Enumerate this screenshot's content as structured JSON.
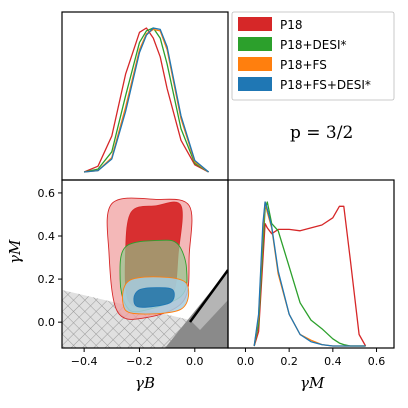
{
  "chart_data": [
    {
      "type": "line",
      "panel": "gamma_B marginal posterior",
      "xlim": [
        -0.48,
        0.12
      ],
      "x": [
        -0.4,
        -0.35,
        -0.3,
        -0.25,
        -0.2,
        -0.175,
        -0.15,
        -0.125,
        -0.1,
        -0.05,
        0.0,
        0.05
      ],
      "series": [
        {
          "name": "P18",
          "color": "#d62728",
          "values": [
            0.0,
            0.04,
            0.25,
            0.68,
            0.97,
            1.0,
            0.93,
            0.8,
            0.58,
            0.22,
            0.05,
            0.0
          ]
        },
        {
          "name": "P18+DESI*",
          "color": "#2ca02c",
          "values": [
            0.0,
            0.02,
            0.14,
            0.53,
            0.9,
            0.98,
            1.0,
            0.93,
            0.75,
            0.3,
            0.06,
            0.0
          ]
        },
        {
          "name": "P18+FS",
          "color": "#ff7f0e",
          "values": [
            0.0,
            0.01,
            0.1,
            0.45,
            0.85,
            0.96,
            0.99,
            0.98,
            0.85,
            0.37,
            0.07,
            0.0
          ]
        },
        {
          "name": "P18+FS+DESI*",
          "color": "#1f77b4",
          "values": [
            0.0,
            0.01,
            0.09,
            0.42,
            0.83,
            0.95,
            1.0,
            0.99,
            0.87,
            0.39,
            0.08,
            0.0
          ]
        }
      ],
      "ticks": []
    },
    {
      "type": "line",
      "panel": "gamma_M marginal posterior",
      "xlabel": "γM",
      "xlim": [
        -0.08,
        0.68
      ],
      "x_ticks": [
        "0.0",
        "0.2",
        "0.4",
        "0.6"
      ],
      "x": [
        0.04,
        0.06,
        0.08,
        0.09,
        0.1,
        0.12,
        0.15,
        0.2,
        0.25,
        0.3,
        0.35,
        0.4,
        0.43,
        0.45,
        0.48,
        0.52,
        0.55
      ],
      "series": [
        {
          "name": "P18",
          "color": "#d62728",
          "values": [
            0.0,
            0.1,
            0.6,
            0.85,
            0.82,
            0.78,
            0.81,
            0.81,
            0.8,
            0.82,
            0.84,
            0.89,
            0.97,
            0.97,
            0.6,
            0.08,
            0.0
          ]
        },
        {
          "name": "P18+DESI*",
          "color": "#2ca02c",
          "values": [
            0.0,
            0.15,
            0.7,
            0.95,
            1.0,
            0.85,
            0.8,
            0.55,
            0.3,
            0.18,
            0.12,
            0.05,
            0.02,
            0.01,
            0.0,
            0.0,
            0.0
          ]
        },
        {
          "name": "P18+FS",
          "color": "#ff7f0e",
          "values": [
            0.0,
            0.2,
            0.8,
            1.0,
            0.93,
            0.82,
            0.5,
            0.22,
            0.08,
            0.04,
            0.01,
            0.0,
            0.0,
            0.0,
            0.0,
            0.0,
            0.0
          ]
        },
        {
          "name": "P18+FS+DESI*",
          "color": "#1f77b4",
          "values": [
            0.0,
            0.22,
            0.85,
            1.0,
            0.95,
            0.83,
            0.52,
            0.22,
            0.08,
            0.03,
            0.01,
            0.0,
            0.0,
            0.0,
            0.0,
            0.0,
            0.0
          ]
        }
      ]
    },
    {
      "type": "contour",
      "panel": "gamma_B vs gamma_M 2D posterior",
      "xlabel": "γB",
      "ylabel": "γM",
      "xlim": [
        -0.48,
        0.12
      ],
      "ylim": [
        -0.12,
        0.66
      ],
      "x_ticks": [
        "-0.4",
        "-0.2",
        "0.0"
      ],
      "y_ticks": [
        "0.0",
        "0.2",
        "0.4",
        "0.6"
      ],
      "contours": [
        {
          "name": "P18 68%",
          "color": "#d62728",
          "points": [
            [
              -0.16,
              0.07
            ],
            [
              -0.08,
              0.13
            ],
            [
              -0.06,
              0.32
            ],
            [
              -0.05,
              0.54
            ],
            [
              -0.14,
              0.54
            ],
            [
              -0.23,
              0.51
            ],
            [
              -0.25,
              0.32
            ],
            [
              -0.24,
              0.1
            ]
          ]
        },
        {
          "name": "P18 95%",
          "color": "#f4a6a6",
          "points": [
            [
              -0.18,
              0.02
            ],
            [
              -0.04,
              0.1
            ],
            [
              -0.02,
              0.32
            ],
            [
              -0.02,
              0.54
            ],
            [
              -0.14,
              0.57
            ],
            [
              -0.3,
              0.55
            ],
            [
              -0.31,
              0.32
            ],
            [
              -0.28,
              0.05
            ]
          ]
        },
        {
          "name": "P18+DESI* 95%",
          "color": "#2ca02c",
          "points": [
            [
              -0.2,
              0.05
            ],
            [
              -0.05,
              0.12
            ],
            [
              -0.03,
              0.25
            ],
            [
              -0.06,
              0.36
            ],
            [
              -0.12,
              0.38
            ],
            [
              -0.25,
              0.35
            ],
            [
              -0.27,
              0.2
            ],
            [
              -0.25,
              0.08
            ]
          ]
        },
        {
          "name": "P18+FS+DESI* 68%",
          "color": "#1f77b4",
          "points": [
            [
              -0.2,
              0.07
            ],
            [
              -0.09,
              0.09
            ],
            [
              -0.08,
              0.15
            ],
            [
              -0.14,
              0.16
            ],
            [
              -0.2,
              0.15
            ],
            [
              -0.22,
              0.11
            ]
          ]
        },
        {
          "name": "P18+FS+DESI* 95%",
          "color": "#a6cde0",
          "points": [
            [
              -0.22,
              0.04
            ],
            [
              -0.05,
              0.06
            ],
            [
              -0.03,
              0.18
            ],
            [
              -0.13,
              0.21
            ],
            [
              -0.24,
              0.19
            ],
            [
              -0.26,
              0.09
            ]
          ]
        }
      ],
      "excluded_region": {
        "label": "excluded parameter space"
      }
    }
  ],
  "legend": {
    "position": "top-right",
    "entries": [
      {
        "label": "P18",
        "color": "#d62728"
      },
      {
        "label": "P18+DESI*",
        "color": "#2ca02c"
      },
      {
        "label": "P18+FS",
        "color": "#ff7f0e"
      },
      {
        "label": "P18+FS+DESI*",
        "color": "#1f77b4"
      }
    ]
  },
  "annotation": "p = 3/2"
}
